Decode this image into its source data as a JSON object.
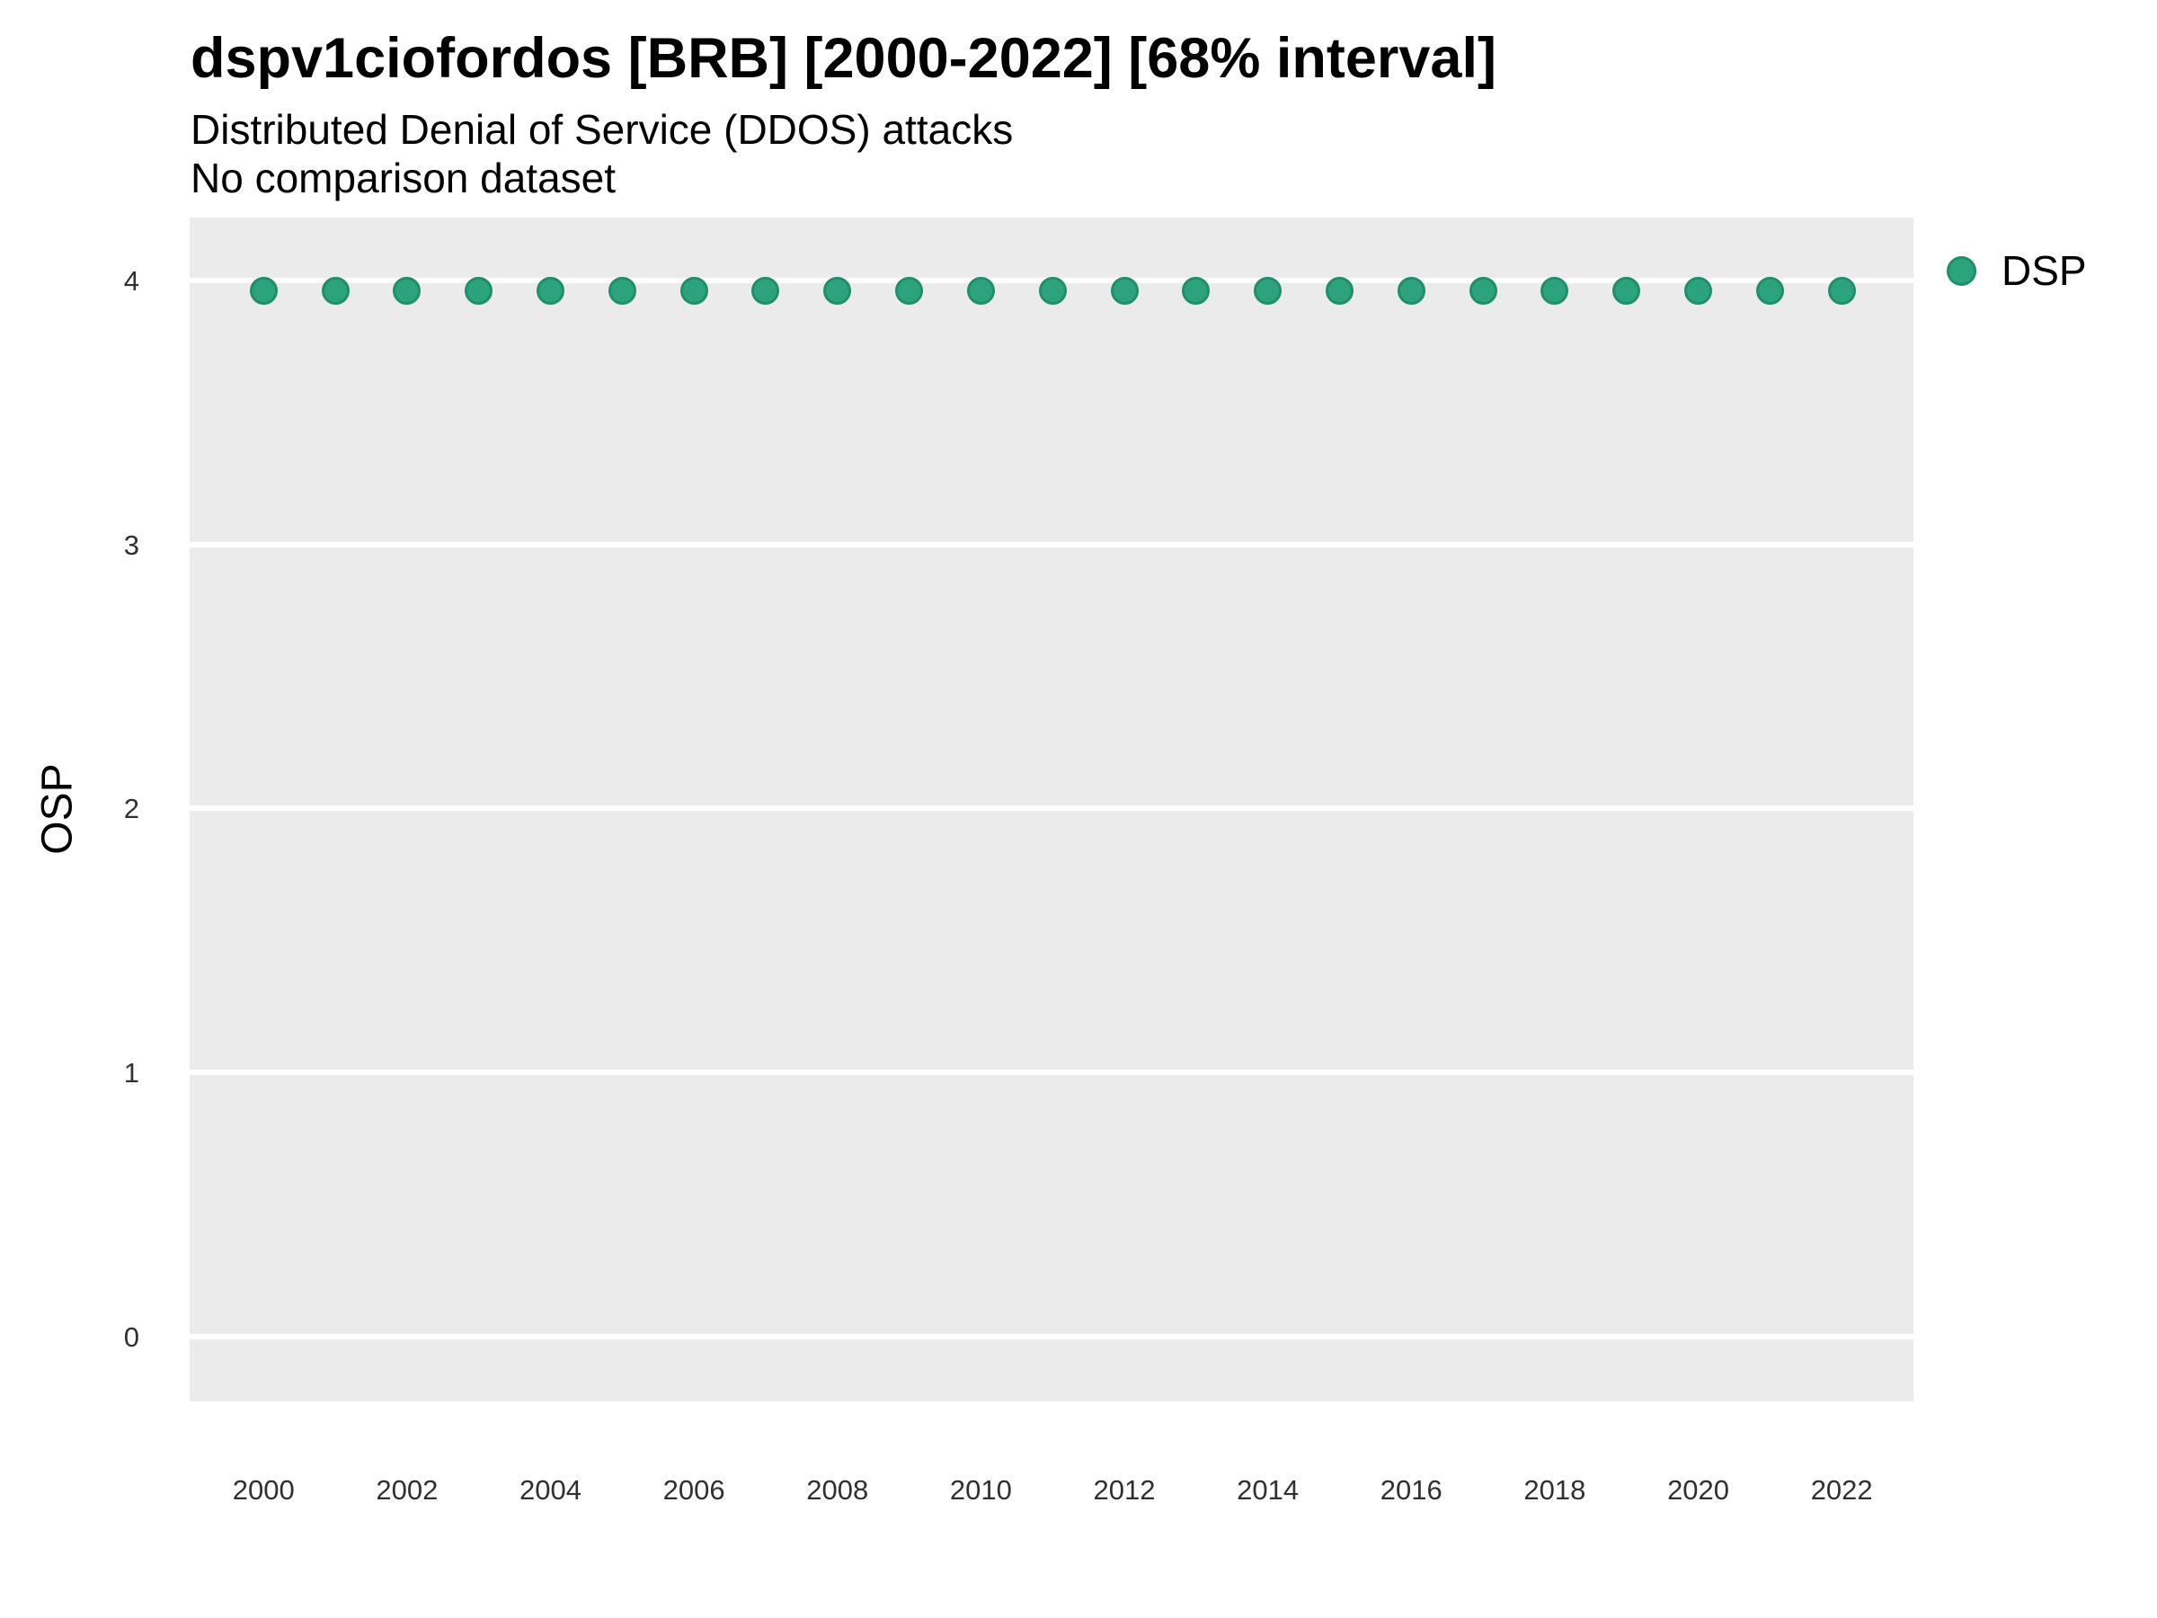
{
  "header": {
    "title": "dspv1ciofordos [BRB] [2000-2022] [68% interval]",
    "subtitle": "Distributed Denial of Service (DDOS) attacks",
    "subtitle2": "No comparison dataset"
  },
  "axes": {
    "y_label": "OSP",
    "x_label": ""
  },
  "legend": {
    "position": "right-top",
    "items": [
      {
        "label": "DSP",
        "color": "#2BA47E"
      }
    ]
  },
  "colors": {
    "panel_background": "#EBEBEB",
    "gridline": "#FFFFFF",
    "point_fill": "#2BA47E",
    "point_border": "#1E8E6B",
    "axis_text": "#303030",
    "title_text": "#000000"
  },
  "chart_data": {
    "type": "scatter",
    "title": "dspv1ciofordos [BRB] [2000-2022] [68% interval]",
    "subtitle": "Distributed Denial of Service (DDOS) attacks",
    "note": "No comparison dataset",
    "xlabel": "",
    "ylabel": "OSP",
    "xlim": [
      1998.97,
      2023.0
    ],
    "ylim": [
      -0.245,
      4.238
    ],
    "x_ticks": [
      2000,
      2002,
      2004,
      2006,
      2008,
      2010,
      2012,
      2014,
      2016,
      2018,
      2020,
      2022
    ],
    "y_ticks": [
      0,
      1,
      2,
      3,
      4
    ],
    "grid": "horizontal-major-only",
    "legend_position": "right-top",
    "series": [
      {
        "name": "DSP",
        "color": "#2BA47E",
        "x": [
          2000,
          2001,
          2002,
          2003,
          2004,
          2005,
          2006,
          2007,
          2008,
          2009,
          2010,
          2011,
          2012,
          2013,
          2014,
          2015,
          2016,
          2017,
          2018,
          2019,
          2020,
          2021,
          2022
        ],
        "y": [
          3.96,
          3.96,
          3.96,
          3.96,
          3.96,
          3.96,
          3.96,
          3.96,
          3.96,
          3.96,
          3.96,
          3.96,
          3.96,
          3.96,
          3.96,
          3.96,
          3.96,
          3.96,
          3.96,
          3.96,
          3.96,
          3.96,
          3.96
        ]
      }
    ]
  }
}
